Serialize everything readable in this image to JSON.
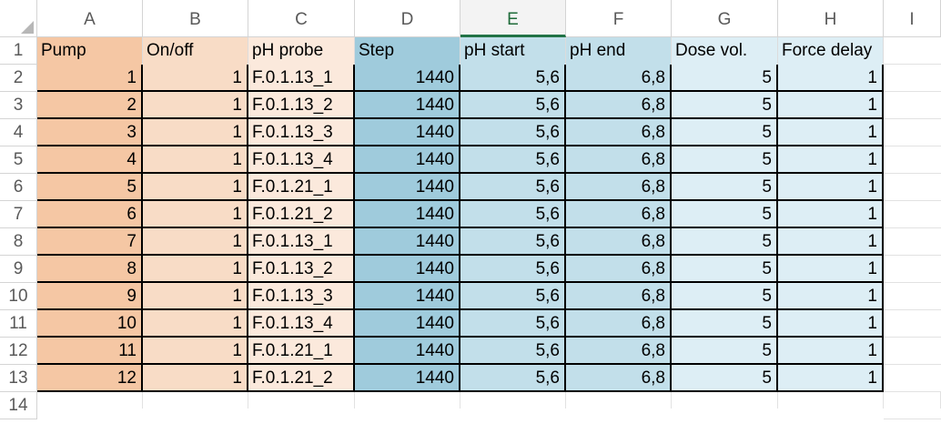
{
  "columns": [
    "A",
    "B",
    "C",
    "D",
    "E",
    "F",
    "G",
    "H",
    "I"
  ],
  "selected_column": "E",
  "row_numbers": [
    "1",
    "2",
    "3",
    "4",
    "5",
    "6",
    "7",
    "8",
    "9",
    "10",
    "11",
    "12",
    "13",
    "14"
  ],
  "headers": [
    "Pump",
    "On/off",
    "pH probe",
    "Step",
    "pH start",
    "pH end",
    "Dose vol.",
    "Force delay"
  ],
  "rows": [
    [
      "1",
      "1",
      "F.0.1.13_1",
      "1440",
      "5,6",
      "6,8",
      "5",
      "1"
    ],
    [
      "2",
      "1",
      "F.0.1.13_2",
      "1440",
      "5,6",
      "6,8",
      "5",
      "1"
    ],
    [
      "3",
      "1",
      "F.0.1.13_3",
      "1440",
      "5,6",
      "6,8",
      "5",
      "1"
    ],
    [
      "4",
      "1",
      "F.0.1.13_4",
      "1440",
      "5,6",
      "6,8",
      "5",
      "1"
    ],
    [
      "5",
      "1",
      "F.0.1.21_1",
      "1440",
      "5,6",
      "6,8",
      "5",
      "1"
    ],
    [
      "6",
      "1",
      "F.0.1.21_2",
      "1440",
      "5,6",
      "6,8",
      "5",
      "1"
    ],
    [
      "7",
      "1",
      "F.0.1.13_1",
      "1440",
      "5,6",
      "6,8",
      "5",
      "1"
    ],
    [
      "8",
      "1",
      "F.0.1.13_2",
      "1440",
      "5,6",
      "6,8",
      "5",
      "1"
    ],
    [
      "9",
      "1",
      "F.0.1.13_3",
      "1440",
      "5,6",
      "6,8",
      "5",
      "1"
    ],
    [
      "10",
      "1",
      "F.0.1.13_4",
      "1440",
      "5,6",
      "6,8",
      "5",
      "1"
    ],
    [
      "11",
      "1",
      "F.0.1.21_1",
      "1440",
      "5,6",
      "6,8",
      "5",
      "1"
    ],
    [
      "12",
      "1",
      "F.0.1.21_2",
      "1440",
      "5,6",
      "6,8",
      "5",
      "1"
    ]
  ],
  "column_fills": [
    "#f5c7a4",
    "#f8dcc6",
    "#fbe9dc",
    "#9fcbdc",
    "#c2dfea",
    "#c2dfea",
    "#ddeef5",
    "#ddeef5"
  ],
  "header_fills": [
    "#f5c7a4",
    "#f8dcc6",
    "#fbe9dc",
    "#9fcbdc",
    "#c2dfea",
    "#c2dfea",
    "#ddeef5",
    "#ddeef5"
  ],
  "header_text_color": "#000000",
  "selected_header_color": "#217346",
  "corner_icon": "select-all-triangle-icon"
}
